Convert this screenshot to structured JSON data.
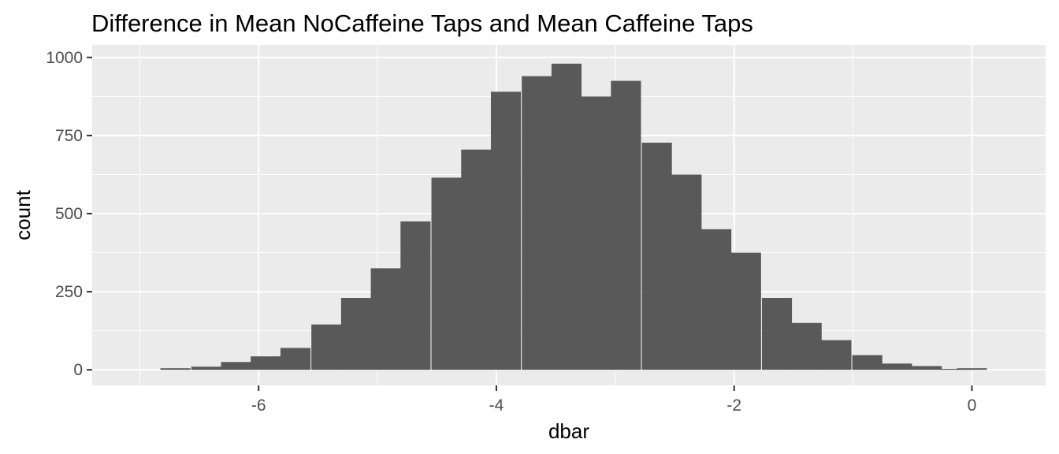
{
  "chart_data": {
    "type": "bar",
    "title": "Difference in Mean NoCaffeine Taps and Mean Caffeine Taps",
    "xlabel": "dbar",
    "ylabel": "count",
    "xlim": [
      -7.4,
      0.62
    ],
    "ylim": [
      -50,
      1040
    ],
    "x_ticks": [
      -6,
      -4,
      -2,
      0
    ],
    "y_ticks": [
      0,
      250,
      500,
      750,
      1000
    ],
    "x_tick_labels": [
      "-6",
      "-4",
      "-2",
      "0"
    ],
    "y_tick_labels": [
      "0",
      "250",
      "500",
      "750",
      "1000"
    ],
    "bin_width": 0.2526,
    "bin_centers": [
      -6.7,
      -6.44,
      -6.19,
      -5.94,
      -5.69,
      -5.43,
      -5.18,
      -4.93,
      -4.68,
      -4.42,
      -4.17,
      -3.92,
      -3.66,
      -3.41,
      -3.16,
      -2.91,
      -2.65,
      -2.4,
      -2.15,
      -1.9,
      -1.64,
      -1.39,
      -1.14,
      -0.88,
      -0.63,
      -0.38,
      -0.13,
      0.0
    ],
    "values": [
      5,
      10,
      25,
      43,
      70,
      145,
      230,
      325,
      475,
      615,
      705,
      890,
      940,
      980,
      875,
      925,
      727,
      625,
      450,
      375,
      230,
      150,
      95,
      47,
      20,
      12,
      3,
      5
    ],
    "bar_color": "#595959",
    "panel_background": "#ebebeb",
    "grid": true,
    "legend": "none"
  }
}
